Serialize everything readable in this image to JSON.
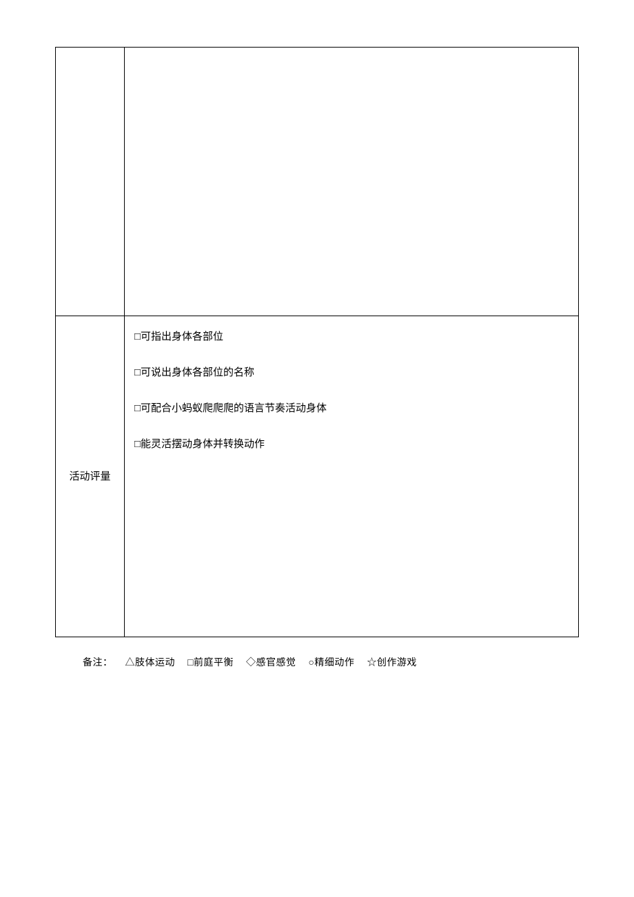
{
  "table": {
    "row1": {
      "label": "",
      "content": ""
    },
    "row2": {
      "label": "活动评量",
      "items": [
        "□可指出身体各部位",
        "□可说出身体各部位的名称",
        "□可配合小蚂蚁爬爬爬的语言节奏活动身体",
        "□能灵活摆动身体并转换动作"
      ]
    }
  },
  "footer": {
    "prefix": "备注：",
    "legend": [
      "△肢体运动",
      "□前庭平衡",
      "◇感官感觉",
      "○精细动作",
      "☆创作游戏"
    ]
  }
}
